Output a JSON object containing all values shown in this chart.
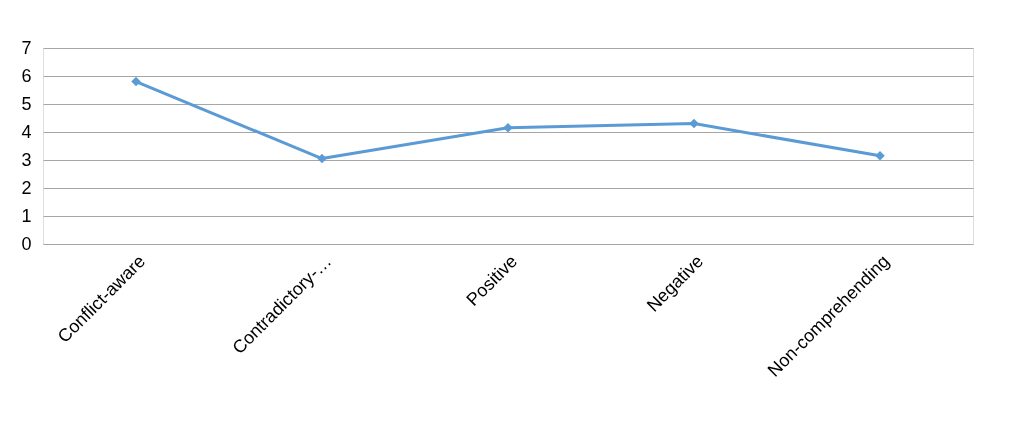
{
  "chart_data": {
    "type": "line",
    "categories": [
      "Conflict-aware",
      "Contradictory-…",
      "Positive",
      "Negative",
      "Non-comprehending"
    ],
    "series": [
      {
        "color": "#5b9bd5",
        "values": [
          5.8,
          3.05,
          4.15,
          4.3,
          3.15
        ]
      }
    ],
    "ylim": [
      0,
      7
    ],
    "yticks": [
      0,
      1,
      2,
      3,
      4,
      5,
      6,
      7
    ],
    "grid": "y",
    "marker": "diamond",
    "line_style": "solid"
  }
}
